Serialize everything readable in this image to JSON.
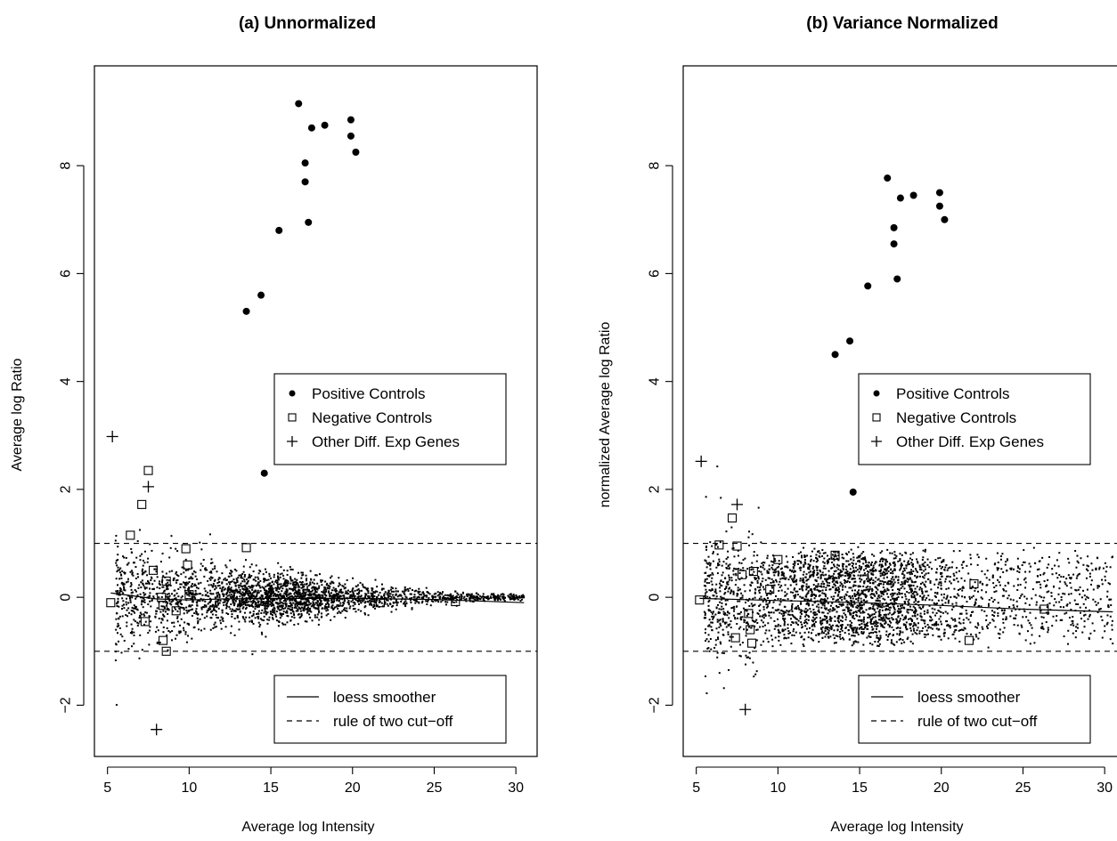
{
  "chart_data": [
    {
      "type": "scatter",
      "title": "(a) Unnormalized",
      "xlabel": "Average log Intensity",
      "ylabel": "Average log Ratio",
      "xlim": [
        4.2,
        31.3
      ],
      "ylim": [
        -2.95,
        9.85
      ],
      "xticks": [
        5,
        10,
        15,
        20,
        25,
        30
      ],
      "yticks": [
        -2,
        0,
        2,
        4,
        6,
        8
      ],
      "grid": false,
      "legend_top": {
        "placement": "middle-right",
        "entries": [
          {
            "symbol": "filled-circle",
            "label": "Positive Controls"
          },
          {
            "symbol": "open-square",
            "label": "Negative Controls"
          },
          {
            "symbol": "plus",
            "label": "Other Diff. Exp Genes"
          }
        ]
      },
      "legend_bottom": {
        "placement": "bottom-right",
        "entries": [
          {
            "symbol": "solid-line",
            "label": "loess smoother"
          },
          {
            "symbol": "dashed-line",
            "label": "rule of two cut−off"
          }
        ]
      },
      "cutoff_lines": [
        1,
        -1
      ],
      "background_cloud": {
        "n": 2600,
        "x_range": [
          5.5,
          30.5
        ],
        "spread_at_low_x": 1.0,
        "spread_at_high_x": 0.06
      },
      "loess_smoother": {
        "x": [
          5.2,
          8,
          10,
          12,
          15,
          20,
          25,
          30.5
        ],
        "y": [
          0.08,
          -0.03,
          -0.05,
          -0.03,
          -0.02,
          -0.02,
          -0.04,
          -0.1
        ]
      },
      "series": [
        {
          "name": "Positive Controls",
          "marker": "filled-circle",
          "x": [
            16.7,
            19.9,
            17.5,
            18.3,
            19.9,
            20.2,
            17.1,
            17.1,
            17.3,
            15.5,
            14.4,
            13.5,
            14.6
          ],
          "y": [
            9.15,
            8.85,
            8.7,
            8.75,
            8.55,
            8.25,
            8.05,
            7.7,
            6.95,
            6.8,
            5.6,
            5.3,
            2.3
          ]
        },
        {
          "name": "Negative Controls",
          "marker": "open-square",
          "x": [
            7.5,
            7.1,
            6.4,
            7.8,
            8.6,
            9.8,
            9.9,
            13.5,
            5.2,
            7.3,
            8.3,
            8.4,
            8.6,
            8.4,
            9.2,
            10.0,
            21.7,
            26.3
          ],
          "y": [
            2.35,
            1.72,
            1.15,
            0.5,
            0.3,
            0.9,
            0.6,
            0.92,
            -0.1,
            -0.45,
            0.0,
            -0.8,
            -1.0,
            -0.15,
            -0.25,
            0.05,
            -0.1,
            -0.08
          ]
        },
        {
          "name": "Other Diff. Exp Genes",
          "marker": "plus",
          "x": [
            5.3,
            7.5,
            8.0
          ],
          "y": [
            2.98,
            2.05,
            -2.45
          ]
        }
      ]
    },
    {
      "type": "scatter",
      "title": "(b) Variance Normalized",
      "xlabel": "Average log Intensity",
      "ylabel": "normalized Average log Ratio",
      "xlim": [
        4.2,
        31.3
      ],
      "ylim": [
        -2.95,
        9.85
      ],
      "xticks": [
        5,
        10,
        15,
        20,
        25,
        30
      ],
      "yticks": [
        -2,
        0,
        2,
        4,
        6,
        8
      ],
      "grid": false,
      "legend_top": {
        "placement": "middle-right",
        "entries": [
          {
            "symbol": "filled-circle",
            "label": "Positive Controls"
          },
          {
            "symbol": "open-square",
            "label": "Negative Controls"
          },
          {
            "symbol": "plus",
            "label": "Other Diff. Exp Genes"
          }
        ]
      },
      "legend_bottom": {
        "placement": "bottom-right",
        "entries": [
          {
            "symbol": "solid-line",
            "label": "loess smoother"
          },
          {
            "symbol": "dashed-line",
            "label": "rule of two cut−off"
          }
        ]
      },
      "cutoff_lines": [
        1,
        -1
      ],
      "background_cloud": {
        "n": 3000,
        "x_range": [
          5.5,
          30.5
        ],
        "spread_at_low_x": 0.75,
        "spread_at_high_x": 0.5
      },
      "loess_smoother": {
        "x": [
          5.2,
          10,
          15,
          20,
          25,
          30.5
        ],
        "y": [
          -0.02,
          -0.06,
          -0.1,
          -0.15,
          -0.22,
          -0.27
        ]
      },
      "series": [
        {
          "name": "Positive Controls",
          "marker": "filled-circle",
          "x": [
            16.7,
            19.9,
            17.5,
            18.3,
            19.9,
            20.2,
            17.1,
            17.1,
            17.3,
            15.5,
            14.4,
            13.5,
            14.6
          ],
          "y": [
            7.77,
            7.5,
            7.4,
            7.45,
            7.25,
            7.0,
            6.85,
            6.55,
            5.9,
            5.77,
            4.75,
            4.5,
            1.95
          ]
        },
        {
          "name": "Negative Controls",
          "marker": "open-square",
          "x": [
            7.2,
            6.4,
            7.5,
            7.8,
            5.2,
            7.4,
            8.3,
            8.4,
            8.5,
            8.2,
            9.5,
            10.0,
            13.5,
            21.7,
            22.0,
            26.3
          ],
          "y": [
            1.47,
            0.97,
            0.95,
            0.42,
            -0.05,
            -0.75,
            -0.6,
            -0.85,
            0.48,
            -0.3,
            0.15,
            0.7,
            0.78,
            -0.8,
            0.25,
            -0.22
          ]
        },
        {
          "name": "Other Diff. Exp Genes",
          "marker": "plus",
          "x": [
            5.3,
            7.5,
            8.0
          ],
          "y": [
            2.52,
            1.72,
            -2.08
          ]
        }
      ]
    }
  ]
}
